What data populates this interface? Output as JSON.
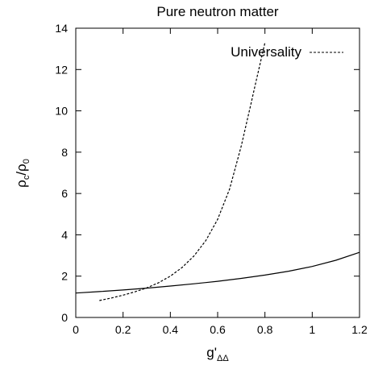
{
  "chart_data": {
    "type": "line",
    "title": "Pure neutron matter",
    "xlabel": {
      "main": "g'",
      "sub": "ΔΔ"
    },
    "ylabel": {
      "main": "ρ",
      "sub1": "c",
      "sep": "/ρ",
      "sub2": "0"
    },
    "xlim": [
      0,
      1.2
    ],
    "ylim": [
      0,
      14
    ],
    "xticks": [
      0,
      0.2,
      0.4,
      0.6,
      0.8,
      1,
      1.2
    ],
    "xtick_labels": [
      "0",
      "0.2",
      "0.4",
      "0.6",
      "0.8",
      "1",
      "1.2"
    ],
    "yticks": [
      0,
      2,
      4,
      6,
      8,
      10,
      12,
      14
    ],
    "ytick_labels": [
      "0",
      "2",
      "4",
      "6",
      "8",
      "10",
      "12",
      "14"
    ],
    "grid": false,
    "legend_position": "top-right",
    "series": [
      {
        "style": "solid",
        "color": "#000000",
        "x": [
          0,
          0.1,
          0.2,
          0.3,
          0.4,
          0.5,
          0.6,
          0.7,
          0.8,
          0.9,
          1.0,
          1.1,
          1.2
        ],
        "y": [
          1.18,
          1.25,
          1.33,
          1.42,
          1.52,
          1.63,
          1.75,
          1.89,
          2.05,
          2.24,
          2.47,
          2.77,
          3.15
        ]
      },
      {
        "name": "Universality",
        "style": "dashed",
        "color": "#000000",
        "x": [
          0.1,
          0.15,
          0.2,
          0.25,
          0.3,
          0.35,
          0.4,
          0.45,
          0.5,
          0.55,
          0.6,
          0.65,
          0.7,
          0.72,
          0.74,
          0.76,
          0.78,
          0.79,
          0.8
        ],
        "y": [
          0.82,
          0.94,
          1.08,
          1.24,
          1.43,
          1.68,
          2.0,
          2.42,
          2.98,
          3.72,
          4.75,
          6.2,
          8.3,
          9.3,
          10.3,
          11.3,
          12.3,
          12.8,
          13.3
        ]
      }
    ]
  }
}
